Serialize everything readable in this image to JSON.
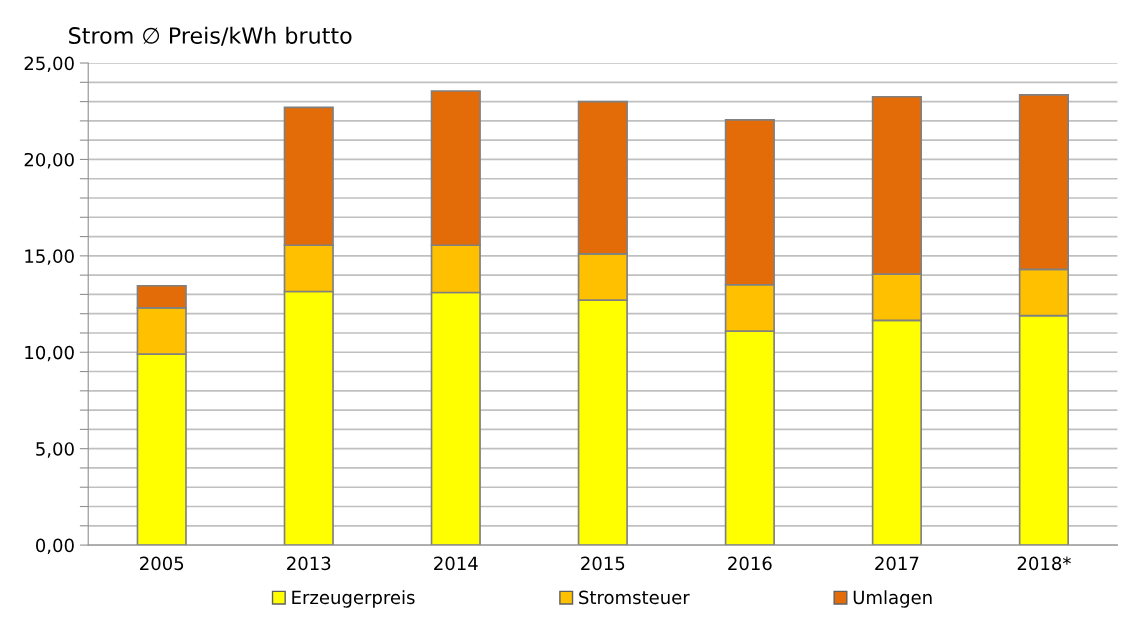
{
  "chart_data": {
    "type": "bar",
    "stacked": true,
    "title": "Strom ∅ Preis/kWh brutto",
    "categories": [
      "2005",
      "2013",
      "2014",
      "2015",
      "2016",
      "2017",
      "2018*"
    ],
    "series": [
      {
        "name": "Erzeugerpreis",
        "color": "#ffff00",
        "values": [
          9.9,
          13.15,
          13.1,
          12.7,
          11.1,
          11.65,
          11.9
        ]
      },
      {
        "name": "Stromsteuer",
        "color": "#ffc000",
        "values": [
          2.4,
          2.4,
          2.45,
          2.4,
          2.4,
          2.4,
          2.4
        ]
      },
      {
        "name": "Umlagen",
        "color": "#e36c09",
        "values": [
          1.15,
          7.15,
          8.0,
          7.9,
          8.55,
          9.2,
          9.05
        ]
      }
    ],
    "ylim": [
      0,
      25
    ],
    "yticks": [
      {
        "value": 0,
        "label": "0,00"
      },
      {
        "value": 1,
        "label": null
      },
      {
        "value": 2,
        "label": null
      },
      {
        "value": 3,
        "label": null
      },
      {
        "value": 4,
        "label": null
      },
      {
        "value": 5,
        "label": "5,00"
      },
      {
        "value": 6,
        "label": null
      },
      {
        "value": 7,
        "label": null
      },
      {
        "value": 8,
        "label": null
      },
      {
        "value": 9,
        "label": null
      },
      {
        "value": 10,
        "label": "10,00"
      },
      {
        "value": 11,
        "label": null
      },
      {
        "value": 12,
        "label": null
      },
      {
        "value": 13,
        "label": null
      },
      {
        "value": 14,
        "label": null
      },
      {
        "value": 15,
        "label": "15,00"
      },
      {
        "value": 16,
        "label": null
      },
      {
        "value": 17,
        "label": null
      },
      {
        "value": 18,
        "label": null
      },
      {
        "value": 19,
        "label": null
      },
      {
        "value": 20,
        "label": "20,00"
      },
      {
        "value": 21,
        "label": null
      },
      {
        "value": 22,
        "label": null
      },
      {
        "value": 23,
        "label": null
      },
      {
        "value": 24,
        "label": null
      },
      {
        "value": 25,
        "label": "25,00"
      }
    ],
    "grid": "y",
    "legend": "bottom"
  }
}
